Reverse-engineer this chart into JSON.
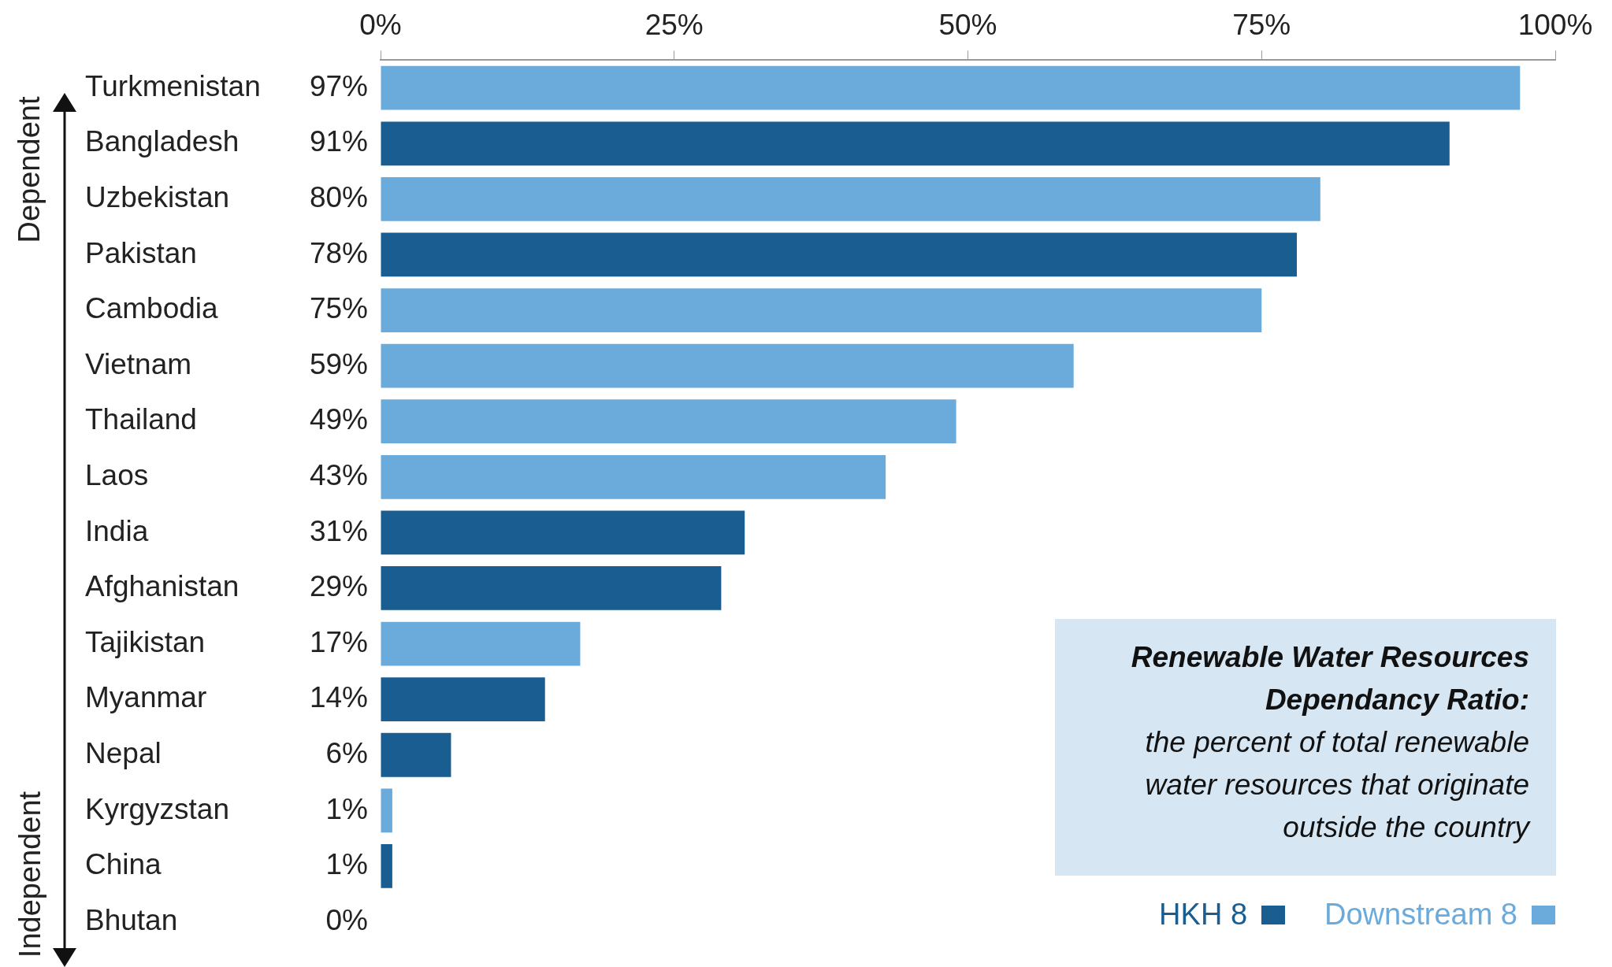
{
  "chart_data": {
    "type": "bar",
    "orientation": "horizontal",
    "categories": [
      "Turkmenistan",
      "Bangladesh",
      "Uzbekistan",
      "Pakistan",
      "Cambodia",
      "Vietnam",
      "Thailand",
      "Laos",
      "India",
      "Afghanistan",
      "Tajikistan",
      "Myanmar",
      "Nepal",
      "Kyrgyzstan",
      "China",
      "Bhutan"
    ],
    "series": [
      {
        "name": "HKH 8",
        "color": "#1a5e91",
        "values": [
          null,
          91,
          null,
          78,
          null,
          null,
          null,
          null,
          31,
          29,
          null,
          14,
          6,
          null,
          1,
          0
        ],
        "value_labels": [
          null,
          "91%",
          null,
          "78%",
          null,
          null,
          null,
          null,
          "31%",
          "29%",
          null,
          "14%",
          "6%",
          null,
          "1%",
          "0%"
        ]
      },
      {
        "name": "Downstream 8",
        "color": "#6aabdb",
        "values": [
          97,
          null,
          80,
          null,
          75,
          59,
          49,
          43,
          null,
          null,
          17,
          null,
          null,
          1,
          null,
          null
        ],
        "value_labels": [
          "97%",
          null,
          "80%",
          null,
          "75%",
          "59%",
          "49%",
          "43%",
          null,
          null,
          "17%",
          null,
          null,
          "1%",
          null,
          null
        ]
      }
    ],
    "xlim": [
      0,
      100
    ],
    "xticks": [
      {
        "value": 0,
        "label": "0%"
      },
      {
        "value": 25,
        "label": "25%"
      },
      {
        "value": 50,
        "label": "50%"
      },
      {
        "value": 75,
        "label": "75%"
      },
      {
        "value": 100,
        "label": "100%"
      }
    ],
    "grid": false,
    "legend": "bottom right",
    "annotations": [
      "Renewable Water Resources Dependancy Ratio:",
      "the percent of total renewable water resources that originate outside the country",
      "Dependent",
      "Independent"
    ]
  }
}
